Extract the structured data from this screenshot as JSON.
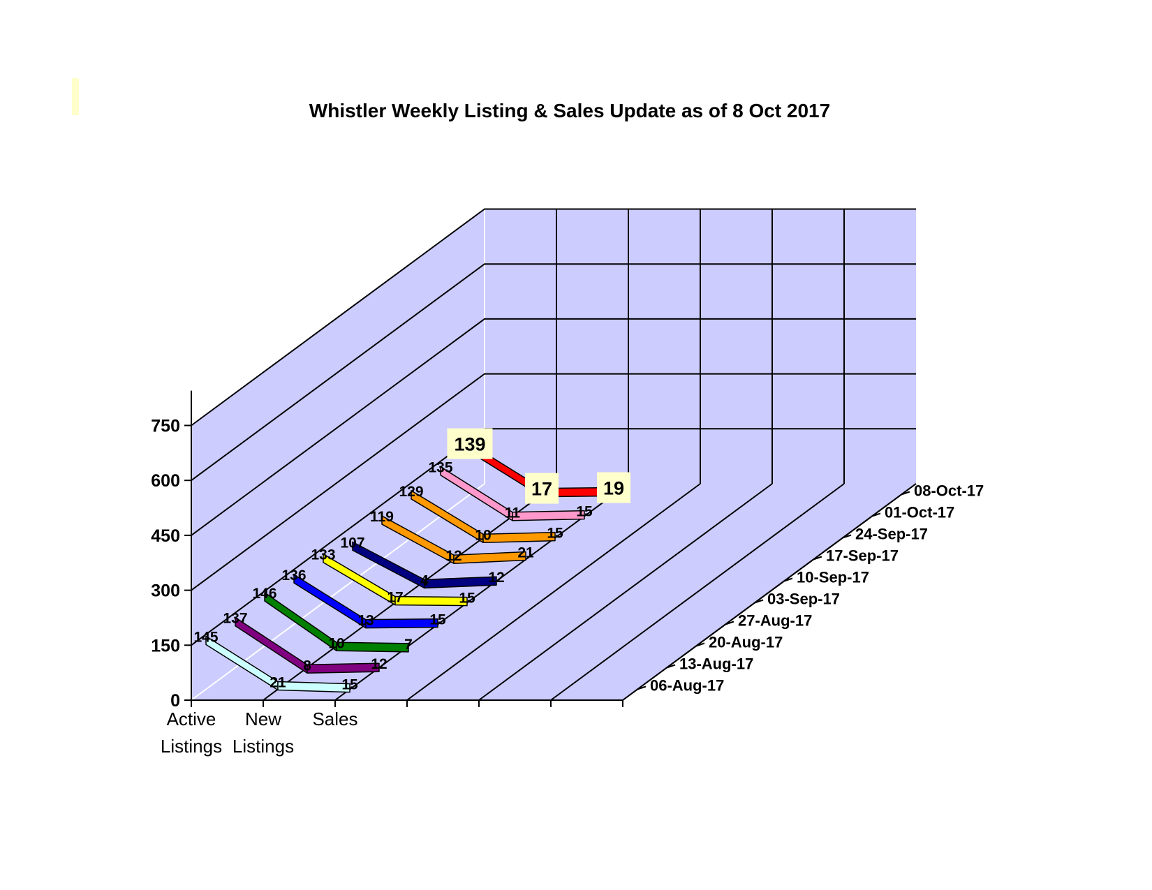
{
  "chart_data": {
    "type": "line",
    "title": "Whistler Weekly Listing & Sales Update as of 8 Oct 2017",
    "categories": [
      "Active Listings",
      "New Listings",
      "Sales"
    ],
    "x_tick_lines": [
      [
        "Active",
        "Listings"
      ],
      [
        "New",
        "Listings"
      ],
      [
        "Sales"
      ]
    ],
    "y_ticks": [
      "0",
      "150",
      "300",
      "450",
      "600",
      "750"
    ],
    "ylim": [
      0,
      750
    ],
    "grid": true,
    "series": [
      {
        "name": "06-Aug-17",
        "values": [
          145,
          21,
          15
        ],
        "color": "#ccffff"
      },
      {
        "name": "13-Aug-17",
        "values": [
          137,
          8,
          12
        ],
        "color": "#800080"
      },
      {
        "name": "20-Aug-17",
        "values": [
          146,
          10,
          7
        ],
        "color": "#008000"
      },
      {
        "name": "27-Aug-17",
        "values": [
          136,
          13,
          15
        ],
        "color": "#0000ff"
      },
      {
        "name": "03-Sep-17",
        "values": [
          133,
          17,
          15
        ],
        "color": "#ffff00"
      },
      {
        "name": "10-Sep-17",
        "values": [
          107,
          4,
          12
        ],
        "color": "#000080"
      },
      {
        "name": "17-Sep-17",
        "values": [
          119,
          12,
          21
        ],
        "color": "#ff9900"
      },
      {
        "name": "24-Sep-17",
        "values": [
          129,
          10,
          15
        ],
        "color": "#ff9900"
      },
      {
        "name": "01-Oct-17",
        "values": [
          135,
          11,
          15
        ],
        "color": "#ff99cc"
      },
      {
        "name": "08-Oct-17",
        "values": [
          139,
          17,
          19
        ],
        "color": "#ff0000"
      }
    ],
    "highlight_series": "08-Oct-17",
    "wall_color": "#ccccff"
  }
}
